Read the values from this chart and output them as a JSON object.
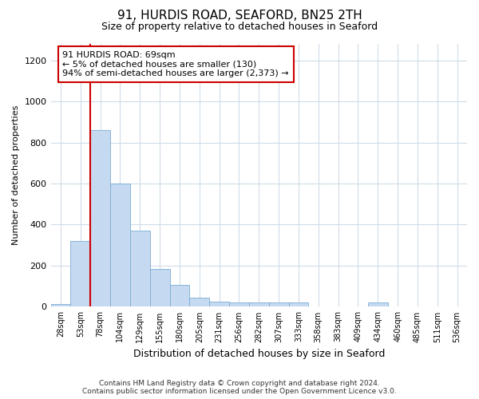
{
  "title1": "91, HURDIS ROAD, SEAFORD, BN25 2TH",
  "title2": "Size of property relative to detached houses in Seaford",
  "xlabel": "Distribution of detached houses by size in Seaford",
  "ylabel": "Number of detached properties",
  "bin_labels": [
    "28sqm",
    "53sqm",
    "78sqm",
    "104sqm",
    "129sqm",
    "155sqm",
    "180sqm",
    "205sqm",
    "231sqm",
    "256sqm",
    "282sqm",
    "307sqm",
    "333sqm",
    "358sqm",
    "383sqm",
    "409sqm",
    "434sqm",
    "460sqm",
    "485sqm",
    "511sqm",
    "536sqm"
  ],
  "bar_heights": [
    15,
    320,
    860,
    600,
    370,
    185,
    105,
    45,
    25,
    20,
    20,
    20,
    20,
    0,
    0,
    0,
    20,
    0,
    0,
    0,
    0
  ],
  "bar_color": "#c5d9f0",
  "bar_edge_color": "#7bacd4",
  "vline_x": 1.5,
  "vline_color": "#cc0000",
  "annotation_text": "91 HURDIS ROAD: 69sqm\n← 5% of detached houses are smaller (130)\n94% of semi-detached houses are larger (2,373) →",
  "annotation_box_color": "#ffffff",
  "annotation_box_edge": "#cc0000",
  "ylim": [
    0,
    1280
  ],
  "yticks": [
    0,
    200,
    400,
    600,
    800,
    1000,
    1200
  ],
  "footer_text": "Contains HM Land Registry data © Crown copyright and database right 2024.\nContains public sector information licensed under the Open Government Licence v3.0.",
  "bg_color": "#ffffff",
  "plot_bg": "#ffffff",
  "grid_color": "#d0dce8"
}
